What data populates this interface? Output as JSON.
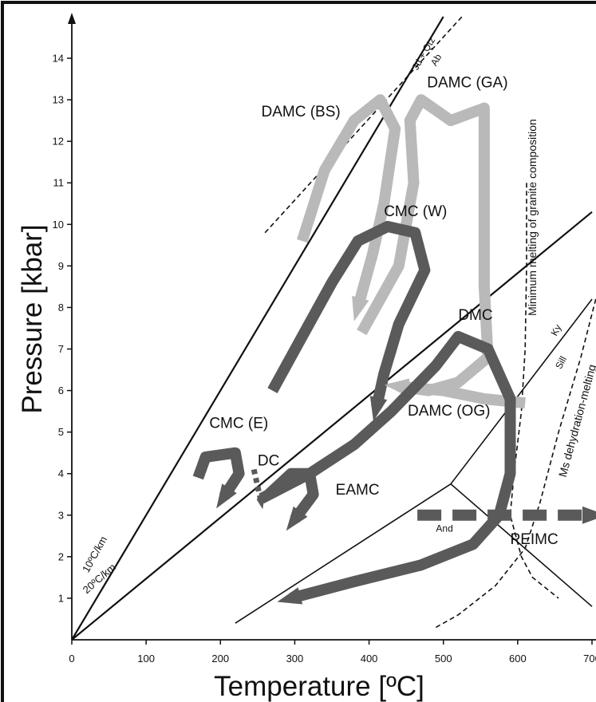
{
  "chart_data": {
    "type": "diagram",
    "title": "",
    "xlabel": "Temperature [ºC]",
    "ylabel": "Pressure [kbar]",
    "xlim": [
      0,
      700
    ],
    "ylim": [
      0,
      14
    ],
    "x_ticks": [
      "0",
      "100",
      "200",
      "300",
      "400",
      "500",
      "600",
      "700"
    ],
    "y_ticks": [
      "1",
      "2",
      "3",
      "4",
      "5",
      "6",
      "7",
      "8",
      "9",
      "10",
      "11",
      "12",
      "13",
      "14"
    ],
    "colors": {
      "dark_path": "#5a5a5a",
      "light_path": "#b9b9b9",
      "line": "#000000"
    },
    "geotherms": [
      {
        "label": "10ºC/km",
        "points": [
          [
            0,
            0
          ],
          [
            500,
            15
          ]
        ]
      },
      {
        "label": "20ºC/km",
        "points": [
          [
            0,
            0
          ],
          [
            700,
            10.3
          ]
        ]
      }
    ],
    "reaction_lines": [
      {
        "label": "Jd + Qtz / Ab",
        "labels": [
          "Jd + Qtz",
          "Ab"
        ],
        "dashed": true,
        "points": [
          [
            260,
            9.8
          ],
          [
            525,
            15
          ]
        ]
      },
      {
        "label": "Ky / Sill",
        "labels": [
          "Ky",
          "Sill"
        ],
        "dashed": false,
        "points": [
          [
            510,
            3.75
          ],
          [
            700,
            8.2
          ]
        ]
      },
      {
        "label": "Sill / And",
        "labels": [
          "Sill",
          "And"
        ],
        "dashed": false,
        "points": [
          [
            510,
            3.75
          ],
          [
            700,
            0.8
          ]
        ]
      },
      {
        "label": "And / Ky",
        "labels": [
          "And"
        ],
        "dashed": false,
        "points": [
          [
            220,
            0.4
          ],
          [
            510,
            3.75
          ]
        ]
      },
      {
        "label": "Minimum melting of granite composition",
        "dashed": true,
        "points": [
          [
            612,
            11
          ],
          [
            612,
            9
          ],
          [
            610,
            7
          ],
          [
            605,
            5.5
          ],
          [
            595,
            4
          ],
          [
            590,
            3
          ],
          [
            605,
            2
          ],
          [
            620,
            1.5
          ],
          [
            655,
            1
          ]
        ]
      },
      {
        "label": "Ms dehydration-melting",
        "dashed": true,
        "points": [
          [
            490,
            0.3
          ],
          [
            520,
            0.6
          ],
          [
            570,
            1.3
          ],
          [
            610,
            2.2
          ],
          [
            630,
            3.3
          ],
          [
            655,
            5
          ],
          [
            685,
            6.8
          ],
          [
            705,
            8.2
          ]
        ]
      }
    ],
    "paths": [
      {
        "label": "DAMC (BS)",
        "tone": "light",
        "points": [
          [
            310,
            9.6
          ],
          [
            340,
            11.3
          ],
          [
            380,
            12.5
          ],
          [
            415,
            13
          ],
          [
            435,
            12.3
          ],
          [
            420,
            10.5
          ],
          [
            405,
            9.3
          ],
          [
            385,
            8
          ]
        ]
      },
      {
        "label": "DAMC (GA)",
        "tone": "light",
        "points": [
          [
            390,
            7.4
          ],
          [
            440,
            9
          ],
          [
            460,
            11
          ],
          [
            455,
            12.5
          ],
          [
            470,
            13
          ],
          [
            510,
            12.5
          ],
          [
            555,
            12.8
          ],
          [
            555,
            11
          ],
          [
            555,
            8.5
          ],
          [
            560,
            6.8
          ],
          [
            520,
            6.2
          ],
          [
            480,
            6
          ],
          [
            440,
            6.1
          ]
        ]
      },
      {
        "label": "CMC (W)",
        "tone": "dark",
        "points": [
          [
            270,
            6
          ],
          [
            310,
            7.3
          ],
          [
            350,
            8.6
          ],
          [
            385,
            9.6
          ],
          [
            425,
            9.95
          ],
          [
            462,
            9.8
          ],
          [
            475,
            8.9
          ],
          [
            440,
            7.6
          ],
          [
            420,
            6.4
          ],
          [
            410,
            5.6
          ]
        ]
      },
      {
        "label": "DAMC (OG)",
        "tone": "light",
        "points": [
          [
            610,
            5.7
          ],
          [
            555,
            5.8
          ],
          [
            500,
            6
          ],
          [
            440,
            6.1
          ]
        ]
      },
      {
        "label": "DMC",
        "tone": "dark",
        "points": [
          [
            255,
            3.4
          ],
          [
            320,
            4
          ],
          [
            380,
            4.7
          ],
          [
            430,
            5.5
          ],
          [
            490,
            6.6
          ],
          [
            520,
            7.3
          ],
          [
            560,
            7
          ],
          [
            590,
            5.8
          ],
          [
            590,
            4
          ],
          [
            575,
            3
          ],
          [
            540,
            2.3
          ],
          [
            470,
            1.8
          ],
          [
            380,
            1.4
          ],
          [
            295,
            1
          ]
        ]
      },
      {
        "label": "CMC (E)",
        "tone": "dark",
        "points": [
          [
            170,
            3.9
          ],
          [
            180,
            4.4
          ],
          [
            220,
            4.5
          ],
          [
            225,
            4
          ],
          [
            205,
            3.45
          ]
        ]
      },
      {
        "label": "EAMC",
        "tone": "dark",
        "points": [
          [
            265,
            3.5
          ],
          [
            295,
            4
          ],
          [
            320,
            4
          ],
          [
            325,
            3.5
          ],
          [
            300,
            2.9
          ]
        ]
      },
      {
        "label": "DC",
        "tone": "dark",
        "dashed": true,
        "points": [
          [
            245,
            4.1
          ],
          [
            255,
            3.3
          ]
        ]
      },
      {
        "label": "PEIMC",
        "tone": "dark",
        "dashed": true,
        "points": [
          [
            465,
            3
          ],
          [
            700,
            3
          ]
        ]
      }
    ]
  }
}
